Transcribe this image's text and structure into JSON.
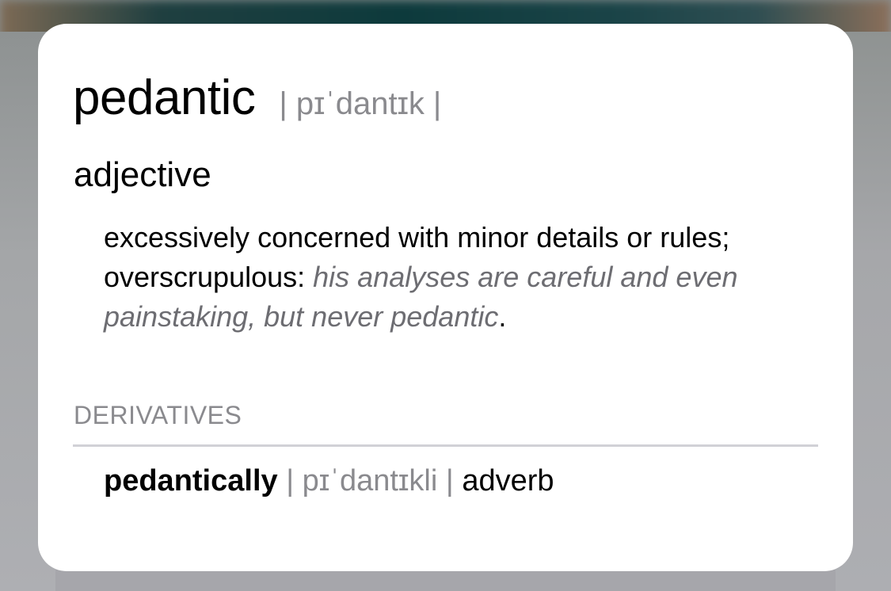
{
  "entry": {
    "headword": "pedantic",
    "pronunciation": "| pɪˈdantɪk |",
    "part_of_speech": "adjective",
    "definition": "excessively concerned with minor details or rules; overscrupulous:",
    "example": "his analyses are careful and even painstaking, but never pedantic",
    "example_end": "."
  },
  "derivatives": {
    "label": "DERIVATIVES",
    "items": [
      {
        "word": "pedantically",
        "pronunciation": "| pɪˈdantɪkli |",
        "part_of_speech": "adverb"
      }
    ]
  }
}
